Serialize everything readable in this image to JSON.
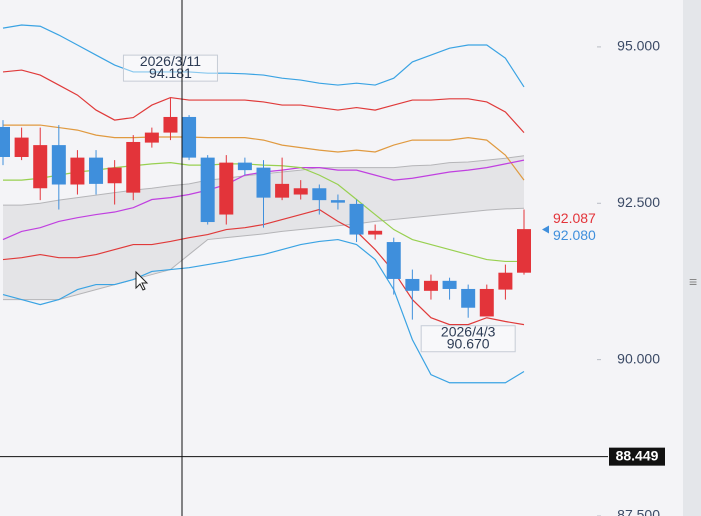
{
  "chart_data": {
    "type": "candlestick",
    "ylim": [
      87.5,
      95.75
    ],
    "yticks": [
      {
        "value": 95,
        "label": "95.000"
      },
      {
        "value": 92.5,
        "label": "92.500"
      },
      {
        "value": 90,
        "label": "90.000"
      },
      {
        "value": 87.5,
        "label": "87.500"
      }
    ],
    "up_color": "#e3343a",
    "down_color": "#3f8fdc",
    "candles": {
      "open": [
        93.72,
        93.24,
        92.74,
        93.43,
        92.8,
        93.23,
        92.82,
        92.67,
        93.47,
        93.63,
        93.88,
        93.23,
        92.32,
        93.15,
        93.07,
        92.59,
        92.64,
        92.74,
        92.55,
        92.49,
        92.0,
        91.88,
        91.29,
        91.1,
        91.26,
        91.13,
        90.69,
        91.12,
        91.39
      ],
      "high": [
        93.83,
        93.71,
        93.71,
        93.75,
        93.35,
        93.35,
        93.19,
        93.59,
        93.71,
        94.181,
        93.91,
        93.27,
        93.27,
        93.23,
        93.19,
        93.23,
        92.87,
        92.8,
        92.64,
        92.56,
        92.16,
        91.95,
        91.44,
        91.36,
        91.31,
        91.2,
        91.2,
        91.52,
        92.4
      ],
      "low": [
        93.11,
        93.19,
        92.55,
        92.4,
        92.64,
        92.64,
        92.48,
        92.55,
        93.39,
        93.51,
        93.19,
        92.16,
        92.16,
        92.95,
        92.11,
        92.55,
        92.56,
        92.32,
        92.4,
        91.88,
        91.92,
        91.04,
        90.64,
        90.96,
        90.96,
        90.67,
        90.72,
        90.96,
        91.36
      ],
      "close": [
        93.24,
        93.55,
        93.43,
        92.8,
        93.23,
        92.81,
        93.07,
        93.48,
        93.63,
        93.88,
        93.23,
        92.2,
        93.15,
        93.03,
        92.59,
        92.81,
        92.74,
        92.55,
        92.51,
        92.0,
        92.06,
        91.29,
        91.1,
        91.26,
        91.13,
        90.83,
        91.13,
        91.39,
        92.087
      ]
    },
    "cloud": {
      "color": "#e4e4e7",
      "line_color": "#b5b5b8",
      "top": [
        92.47,
        92.47,
        92.5,
        92.55,
        92.59,
        92.63,
        92.67,
        92.71,
        92.74,
        92.78,
        92.81,
        92.87,
        92.9,
        92.94,
        92.97,
        93.0,
        93.03,
        93.07,
        93.07,
        93.07,
        93.07,
        93.07,
        93.1,
        93.11,
        93.15,
        93.16,
        93.19,
        93.22,
        93.26
      ],
      "bottom": [
        90.96,
        90.96,
        90.96,
        90.96,
        91.04,
        91.12,
        91.2,
        91.28,
        91.36,
        91.44,
        91.68,
        91.92,
        91.95,
        91.98,
        92.01,
        92.05,
        92.08,
        92.11,
        92.14,
        92.17,
        92.21,
        92.24,
        92.27,
        92.3,
        92.33,
        92.36,
        92.39,
        92.41,
        92.42
      ]
    },
    "series": [
      {
        "color": "#3aa3e3",
        "values": [
          95.3,
          95.35,
          95.33,
          95.19,
          95.03,
          94.87,
          94.71,
          94.6,
          94.6,
          94.6,
          94.6,
          94.58,
          94.58,
          94.57,
          94.55,
          94.5,
          94.47,
          94.42,
          94.39,
          94.42,
          94.39,
          94.5,
          94.76,
          94.87,
          94.98,
          95.03,
          95.03,
          94.82,
          94.36
        ]
      },
      {
        "color": "#e03a3a",
        "values": [
          94.6,
          94.63,
          94.55,
          94.39,
          94.23,
          93.99,
          93.83,
          93.87,
          94.07,
          94.19,
          94.15,
          94.15,
          94.15,
          94.15,
          94.12,
          94.07,
          94.07,
          94.03,
          93.99,
          94.03,
          93.99,
          94.07,
          94.15,
          94.15,
          94.17,
          94.17,
          94.12,
          93.96,
          93.63
        ]
      },
      {
        "color": "#e09a40",
        "values": [
          93.75,
          93.75,
          93.75,
          93.71,
          93.67,
          93.59,
          93.55,
          93.55,
          93.56,
          93.56,
          93.56,
          93.55,
          93.55,
          93.55,
          93.51,
          93.43,
          93.39,
          93.35,
          93.32,
          93.35,
          93.32,
          93.43,
          93.51,
          93.51,
          93.51,
          93.55,
          93.51,
          93.27,
          92.87
        ]
      },
      {
        "color": "#c040e0",
        "values": [
          91.92,
          92.05,
          92.11,
          92.21,
          92.27,
          92.32,
          92.36,
          92.43,
          92.56,
          92.59,
          92.64,
          92.71,
          92.8,
          92.95,
          93.0,
          93.03,
          93.07,
          93.07,
          93.03,
          93.03,
          92.95,
          92.87,
          92.9,
          92.95,
          93.0,
          93.03,
          93.07,
          93.13,
          93.19
        ]
      },
      {
        "color": "#98d050",
        "values": [
          92.87,
          92.87,
          92.9,
          92.95,
          93.0,
          93.03,
          93.07,
          93.1,
          93.13,
          93.15,
          93.11,
          93.11,
          93.13,
          93.13,
          93.11,
          93.1,
          93.07,
          92.95,
          92.8,
          92.56,
          92.32,
          92.08,
          91.92,
          91.84,
          91.76,
          91.68,
          91.6,
          91.57,
          91.57
        ]
      },
      {
        "color": "#e03a3a",
        "values": [
          91.6,
          91.63,
          91.68,
          91.63,
          91.63,
          91.68,
          91.76,
          91.84,
          91.84,
          91.89,
          91.95,
          92.0,
          92.08,
          92.11,
          92.16,
          92.24,
          92.32,
          92.4,
          92.21,
          92.05,
          91.76,
          91.41,
          90.96,
          90.67,
          90.56,
          90.56,
          90.67,
          90.61,
          90.56
        ]
      },
      {
        "color": "#3aa3e3",
        "values": [
          91.04,
          90.96,
          90.88,
          90.96,
          91.12,
          91.2,
          91.2,
          91.28,
          91.41,
          91.44,
          91.47,
          91.52,
          91.57,
          91.63,
          91.68,
          91.76,
          91.84,
          91.89,
          91.92,
          91.84,
          91.6,
          91.12,
          90.32,
          89.76,
          89.63,
          89.63,
          89.63,
          89.63,
          89.81
        ]
      }
    ],
    "annotations": [
      {
        "text": "2026/3/11",
        "value": 94.181,
        "label": "94.181"
      },
      {
        "text": "2026/4/3",
        "value": 90.67,
        "label": "90.670"
      }
    ],
    "price_labels": [
      {
        "value": 92.087,
        "label": "92.087",
        "color": "#e3343a"
      },
      {
        "value": 92.08,
        "label": "92.080",
        "color": "#3f8fdc"
      }
    ],
    "crosshair": {
      "value": 88.449,
      "label": "88.449"
    }
  }
}
